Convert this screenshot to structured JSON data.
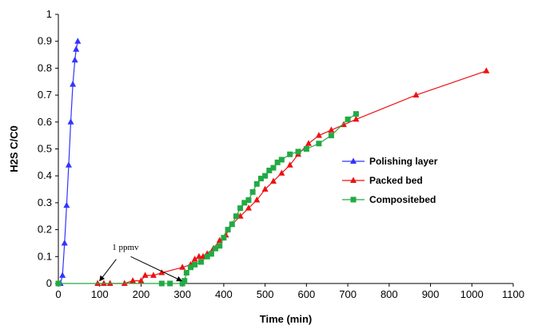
{
  "chart_data": {
    "type": "scatter",
    "xlabel": "Time (min)",
    "ylabel": "H2S C/C0",
    "xlim": [
      0,
      1100
    ],
    "ylim": [
      0,
      1
    ],
    "xticks": [
      "0",
      "100",
      "200",
      "300",
      "400",
      "500",
      "600",
      "700",
      "800",
      "900",
      "1000",
      "1100"
    ],
    "yticks": [
      "0",
      "0.1",
      "0.2",
      "0.3",
      "0.4",
      "0.5",
      "0.6",
      "0.7",
      "0.8",
      "0.9",
      "1"
    ],
    "grid": false,
    "legend_position": "right",
    "annotation": {
      "text": "1 ppmv"
    },
    "series": [
      {
        "name": "Polishing layer",
        "color": "#3333ff",
        "marker": "triangle",
        "points": [
          [
            5,
            0
          ],
          [
            10,
            0.03
          ],
          [
            15,
            0.15
          ],
          [
            20,
            0.29
          ],
          [
            25,
            0.44
          ],
          [
            30,
            0.6
          ],
          [
            35,
            0.74
          ],
          [
            40,
            0.83
          ],
          [
            43,
            0.87
          ],
          [
            47,
            0.9
          ]
        ]
      },
      {
        "name": "Packed bed",
        "color": "#ee1111",
        "marker": "triangle",
        "points": [
          [
            95,
            0
          ],
          [
            110,
            0
          ],
          [
            125,
            0
          ],
          [
            160,
            0
          ],
          [
            180,
            0.01
          ],
          [
            200,
            0.01
          ],
          [
            210,
            0.03
          ],
          [
            230,
            0.03
          ],
          [
            250,
            0.04
          ],
          [
            300,
            0.06
          ],
          [
            320,
            0.07
          ],
          [
            330,
            0.09
          ],
          [
            340,
            0.1
          ],
          [
            350,
            0.1
          ],
          [
            360,
            0.11
          ],
          [
            375,
            0.13
          ],
          [
            390,
            0.16
          ],
          [
            405,
            0.18
          ],
          [
            420,
            0.22
          ],
          [
            440,
            0.25
          ],
          [
            460,
            0.28
          ],
          [
            480,
            0.31
          ],
          [
            500,
            0.35
          ],
          [
            520,
            0.38
          ],
          [
            540,
            0.41
          ],
          [
            560,
            0.44
          ],
          [
            580,
            0.48
          ],
          [
            605,
            0.52
          ],
          [
            630,
            0.55
          ],
          [
            660,
            0.57
          ],
          [
            690,
            0.59
          ],
          [
            720,
            0.61
          ],
          [
            865,
            0.7
          ],
          [
            1035,
            0.79
          ]
        ]
      },
      {
        "name": "Compositebed",
        "color": "#22aa44",
        "marker": "square",
        "points": [
          [
            0,
            0
          ],
          [
            250,
            0
          ],
          [
            270,
            0
          ],
          [
            300,
            0
          ],
          [
            305,
            0.01
          ],
          [
            310,
            0.04
          ],
          [
            320,
            0.06
          ],
          [
            330,
            0.07
          ],
          [
            345,
            0.08
          ],
          [
            360,
            0.1
          ],
          [
            370,
            0.11
          ],
          [
            380,
            0.13
          ],
          [
            390,
            0.14
          ],
          [
            400,
            0.17
          ],
          [
            410,
            0.2
          ],
          [
            420,
            0.22
          ],
          [
            430,
            0.25
          ],
          [
            440,
            0.28
          ],
          [
            450,
            0.3
          ],
          [
            460,
            0.31
          ],
          [
            470,
            0.34
          ],
          [
            480,
            0.37
          ],
          [
            490,
            0.39
          ],
          [
            500,
            0.4
          ],
          [
            510,
            0.42
          ],
          [
            520,
            0.43
          ],
          [
            530,
            0.45
          ],
          [
            540,
            0.46
          ],
          [
            560,
            0.48
          ],
          [
            580,
            0.49
          ],
          [
            600,
            0.5
          ],
          [
            630,
            0.52
          ],
          [
            660,
            0.55
          ],
          [
            700,
            0.61
          ],
          [
            720,
            0.63
          ]
        ]
      }
    ]
  }
}
